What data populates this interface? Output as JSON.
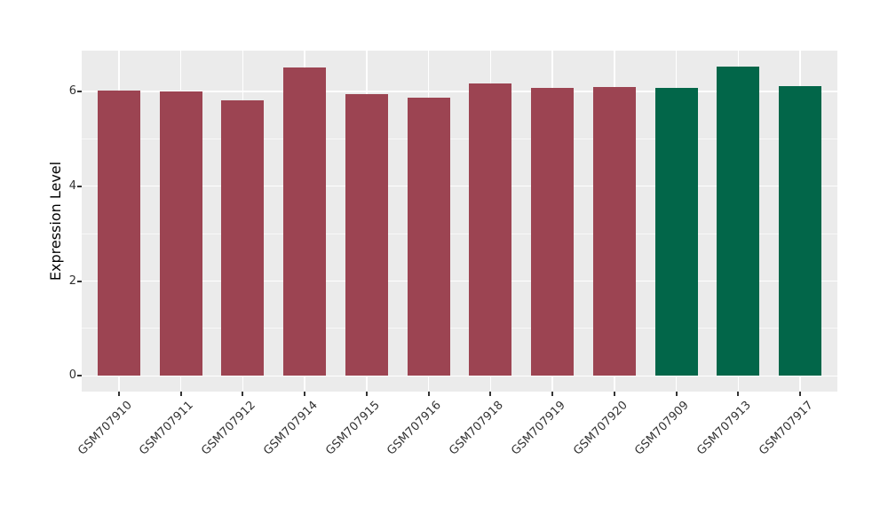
{
  "chart_data": {
    "type": "bar",
    "title": "",
    "xlabel": "",
    "ylabel": "Expression Level",
    "categories": [
      "GSM707910",
      "GSM707911",
      "GSM707912",
      "GSM707914",
      "GSM707915",
      "GSM707916",
      "GSM707918",
      "GSM707919",
      "GSM707920",
      "GSM707909",
      "GSM707913",
      "GSM707917"
    ],
    "values": [
      6.02,
      5.99,
      5.82,
      6.5,
      5.94,
      5.86,
      6.17,
      6.07,
      6.1,
      6.07,
      6.53,
      6.11
    ],
    "bar_colors": [
      "#9C4452",
      "#9C4452",
      "#9C4452",
      "#9C4452",
      "#9C4452",
      "#9C4452",
      "#9C4452",
      "#9C4452",
      "#9C4452",
      "#026649",
      "#026649",
      "#026649"
    ],
    "group_colors": {
      "left_group_red": "#9C4452",
      "right_group_green": "#026649"
    },
    "yticks": [
      0,
      2,
      4,
      6
    ],
    "ytick_labels": [
      "0",
      "2",
      "4",
      "6"
    ],
    "minor_yticks": [
      1,
      3,
      5
    ],
    "ylim": [
      -0.33,
      6.86
    ],
    "legend_position": "none",
    "grid": "major and minor horizontal white lines, vertical white line at each category",
    "panel_bg": "#EBEBEB",
    "grid_color": "#FFFFFF",
    "axis_text_color": "#333333",
    "tick_mark_color": "#333333"
  }
}
